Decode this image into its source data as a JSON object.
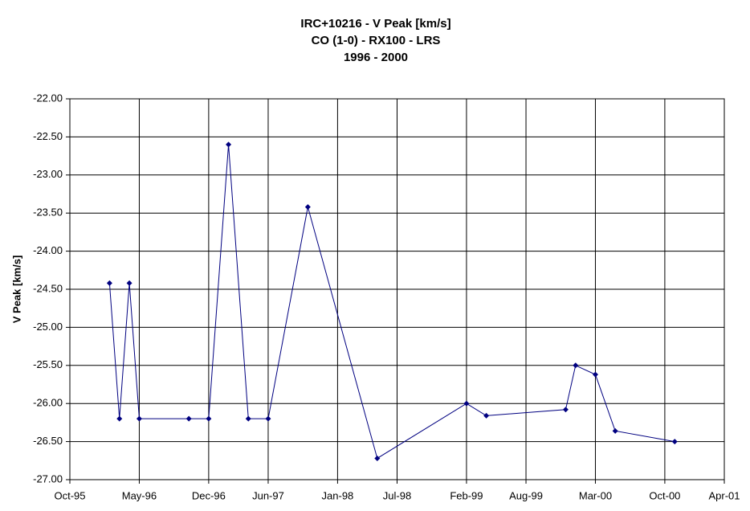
{
  "chart_data": {
    "type": "line",
    "title": [
      "IRC+10216 - V Peak [km/s]",
      "CO (1-0) - RX100 - LRS",
      "1996 - 2000"
    ],
    "y_label": "V Peak [km/s]",
    "x": [
      "1996-02",
      "1996-03",
      "1996-04",
      "1996-05",
      "1996-10",
      "1996-12",
      "1997-02",
      "1997-04",
      "1997-06",
      "1997-10",
      "1998-05",
      "1999-02",
      "1999-04",
      "1999-12",
      "2000-01",
      "2000-03",
      "2000-05",
      "2000-11"
    ],
    "series": [
      {
        "color": "#000080",
        "values": [
          -24.42,
          -26.2,
          -24.42,
          -26.2,
          -26.2,
          -26.2,
          -22.6,
          -26.2,
          -26.2,
          -23.42,
          -26.72,
          -26.0,
          -26.16,
          -26.08,
          -25.5,
          -25.62,
          -26.36,
          -26.5
        ]
      }
    ],
    "xlim": [
      "1995-10",
      "2001-04"
    ],
    "xticks": [
      {
        "value": "1995-10",
        "label": "Oct-95"
      },
      {
        "value": "1996-05",
        "label": "May-96"
      },
      {
        "value": "1996-12",
        "label": "Dec-96"
      },
      {
        "value": "1997-06",
        "label": "Jun-97"
      },
      {
        "value": "1998-01",
        "label": "Jan-98"
      },
      {
        "value": "1998-07",
        "label": "Jul-98"
      },
      {
        "value": "1999-02",
        "label": "Feb-99"
      },
      {
        "value": "1999-08",
        "label": "Aug-99"
      },
      {
        "value": "2000-03",
        "label": "Mar-00"
      },
      {
        "value": "2000-10",
        "label": "Oct-00"
      },
      {
        "value": "2001-04",
        "label": "Apr-01"
      }
    ],
    "ylim": [
      -27,
      -22
    ],
    "yticks": [
      {
        "value": -27,
        "label": "-27.00"
      },
      {
        "value": -26.5,
        "label": "-26.50"
      },
      {
        "value": -26,
        "label": "-26.00"
      },
      {
        "value": -25.5,
        "label": "-25.50"
      },
      {
        "value": -25,
        "label": "-25.00"
      },
      {
        "value": -24.5,
        "label": "-24.50"
      },
      {
        "value": -24,
        "label": "-24.00"
      },
      {
        "value": -23.5,
        "label": "-23.50"
      },
      {
        "value": -23,
        "label": "-23.00"
      },
      {
        "value": -22.5,
        "label": "-22.50"
      },
      {
        "value": -22,
        "label": "-22.00"
      }
    ],
    "grid": true
  }
}
